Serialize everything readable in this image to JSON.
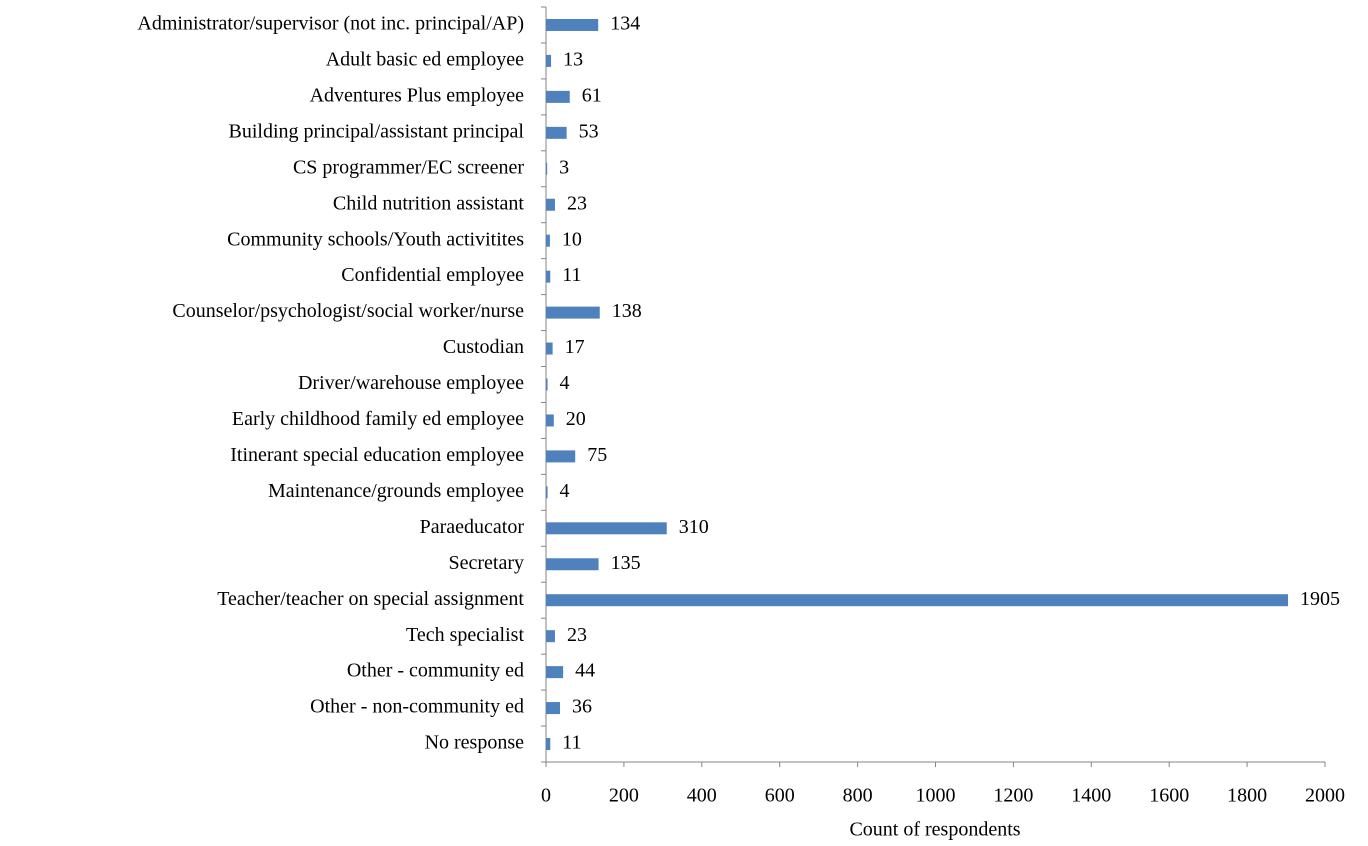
{
  "chart_data": {
    "type": "bar",
    "orientation": "horizontal",
    "x_label": "Count of respondents",
    "categories": [
      "Administrator/supervisor (not inc. principal/AP)",
      "Adult basic ed employee",
      "Adventures Plus employee",
      "Building principal/assistant principal",
      "CS programmer/EC screener",
      "Child nutrition assistant",
      "Community schools/Youth activitites",
      "Confidential employee",
      "Counselor/psychologist/social worker/nurse",
      "Custodian",
      "Driver/warehouse employee",
      "Early childhood family ed employee",
      "Itinerant special education employee",
      "Maintenance/grounds employee",
      "Paraeducator",
      "Secretary",
      "Teacher/teacher on special assignment",
      "Tech specialist",
      "Other - community ed",
      "Other - non-community ed",
      "No response"
    ],
    "values": [
      134,
      13,
      61,
      53,
      3,
      23,
      10,
      11,
      138,
      17,
      4,
      20,
      75,
      4,
      310,
      135,
      1905,
      23,
      44,
      36,
      11
    ],
    "color": "#4f81bd",
    "xlim": [
      0,
      2000
    ],
    "xticks": [
      0,
      200,
      400,
      600,
      800,
      1000,
      1200,
      1400,
      1600,
      1800,
      2000
    ],
    "grid": false
  }
}
